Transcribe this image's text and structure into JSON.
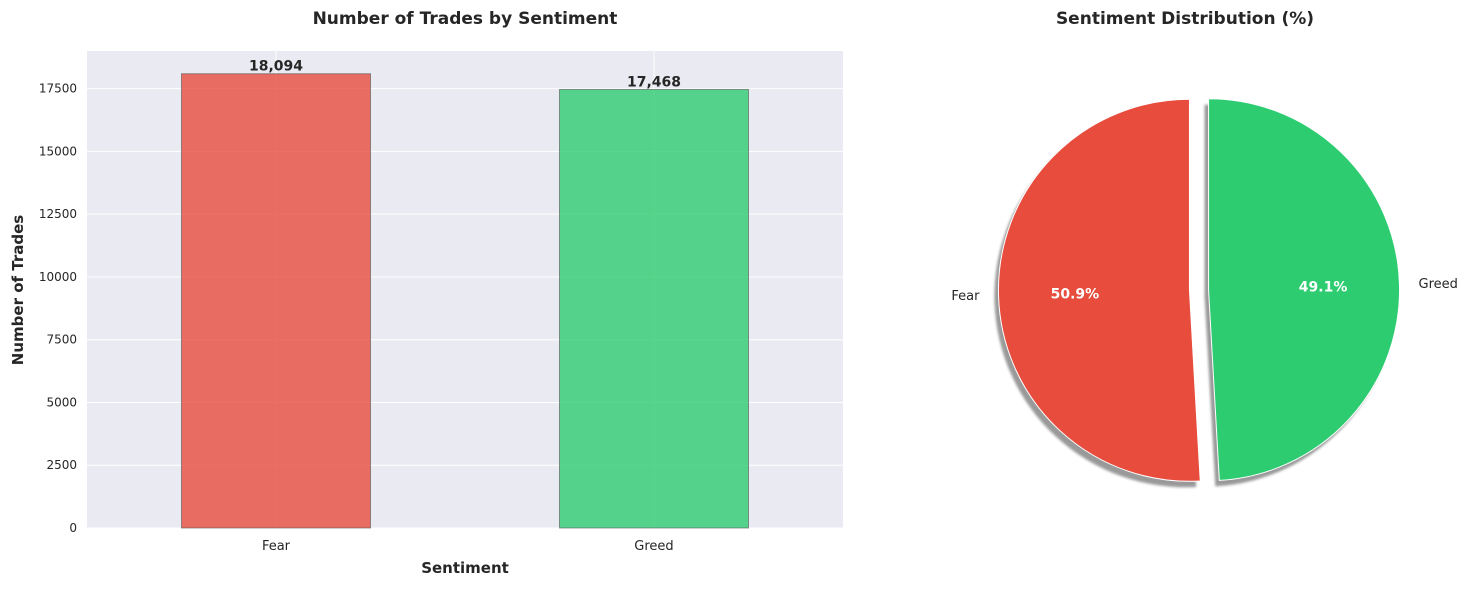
{
  "chart_data": [
    {
      "type": "bar",
      "title": "Number of Trades by Sentiment",
      "xlabel": "Sentiment",
      "ylabel": "Number of Trades",
      "categories": [
        "Fear",
        "Greed"
      ],
      "values": [
        18094,
        17468
      ],
      "value_labels": [
        "18,094",
        "17,468"
      ],
      "bar_colors": [
        "#e74c3c",
        "#2ecc71"
      ],
      "ylim": [
        0,
        19000
      ],
      "yticks": [
        0,
        2500,
        5000,
        7500,
        10000,
        12500,
        15000,
        17500
      ],
      "ytick_labels": [
        "0",
        "2500",
        "5000",
        "7500",
        "10000",
        "12500",
        "15000",
        "17500"
      ],
      "grid": true,
      "background": "#eaeaf2"
    },
    {
      "type": "pie",
      "title": "Sentiment Distribution (%)",
      "labels": [
        "Fear",
        "Greed"
      ],
      "values": [
        50.9,
        49.1
      ],
      "percent_labels": [
        "50.9%",
        "49.1%"
      ],
      "colors": [
        "#e74c3c",
        "#2ecc71"
      ],
      "explode": [
        0.05,
        0.05
      ],
      "shadow": true,
      "start_angle": 90
    }
  ]
}
